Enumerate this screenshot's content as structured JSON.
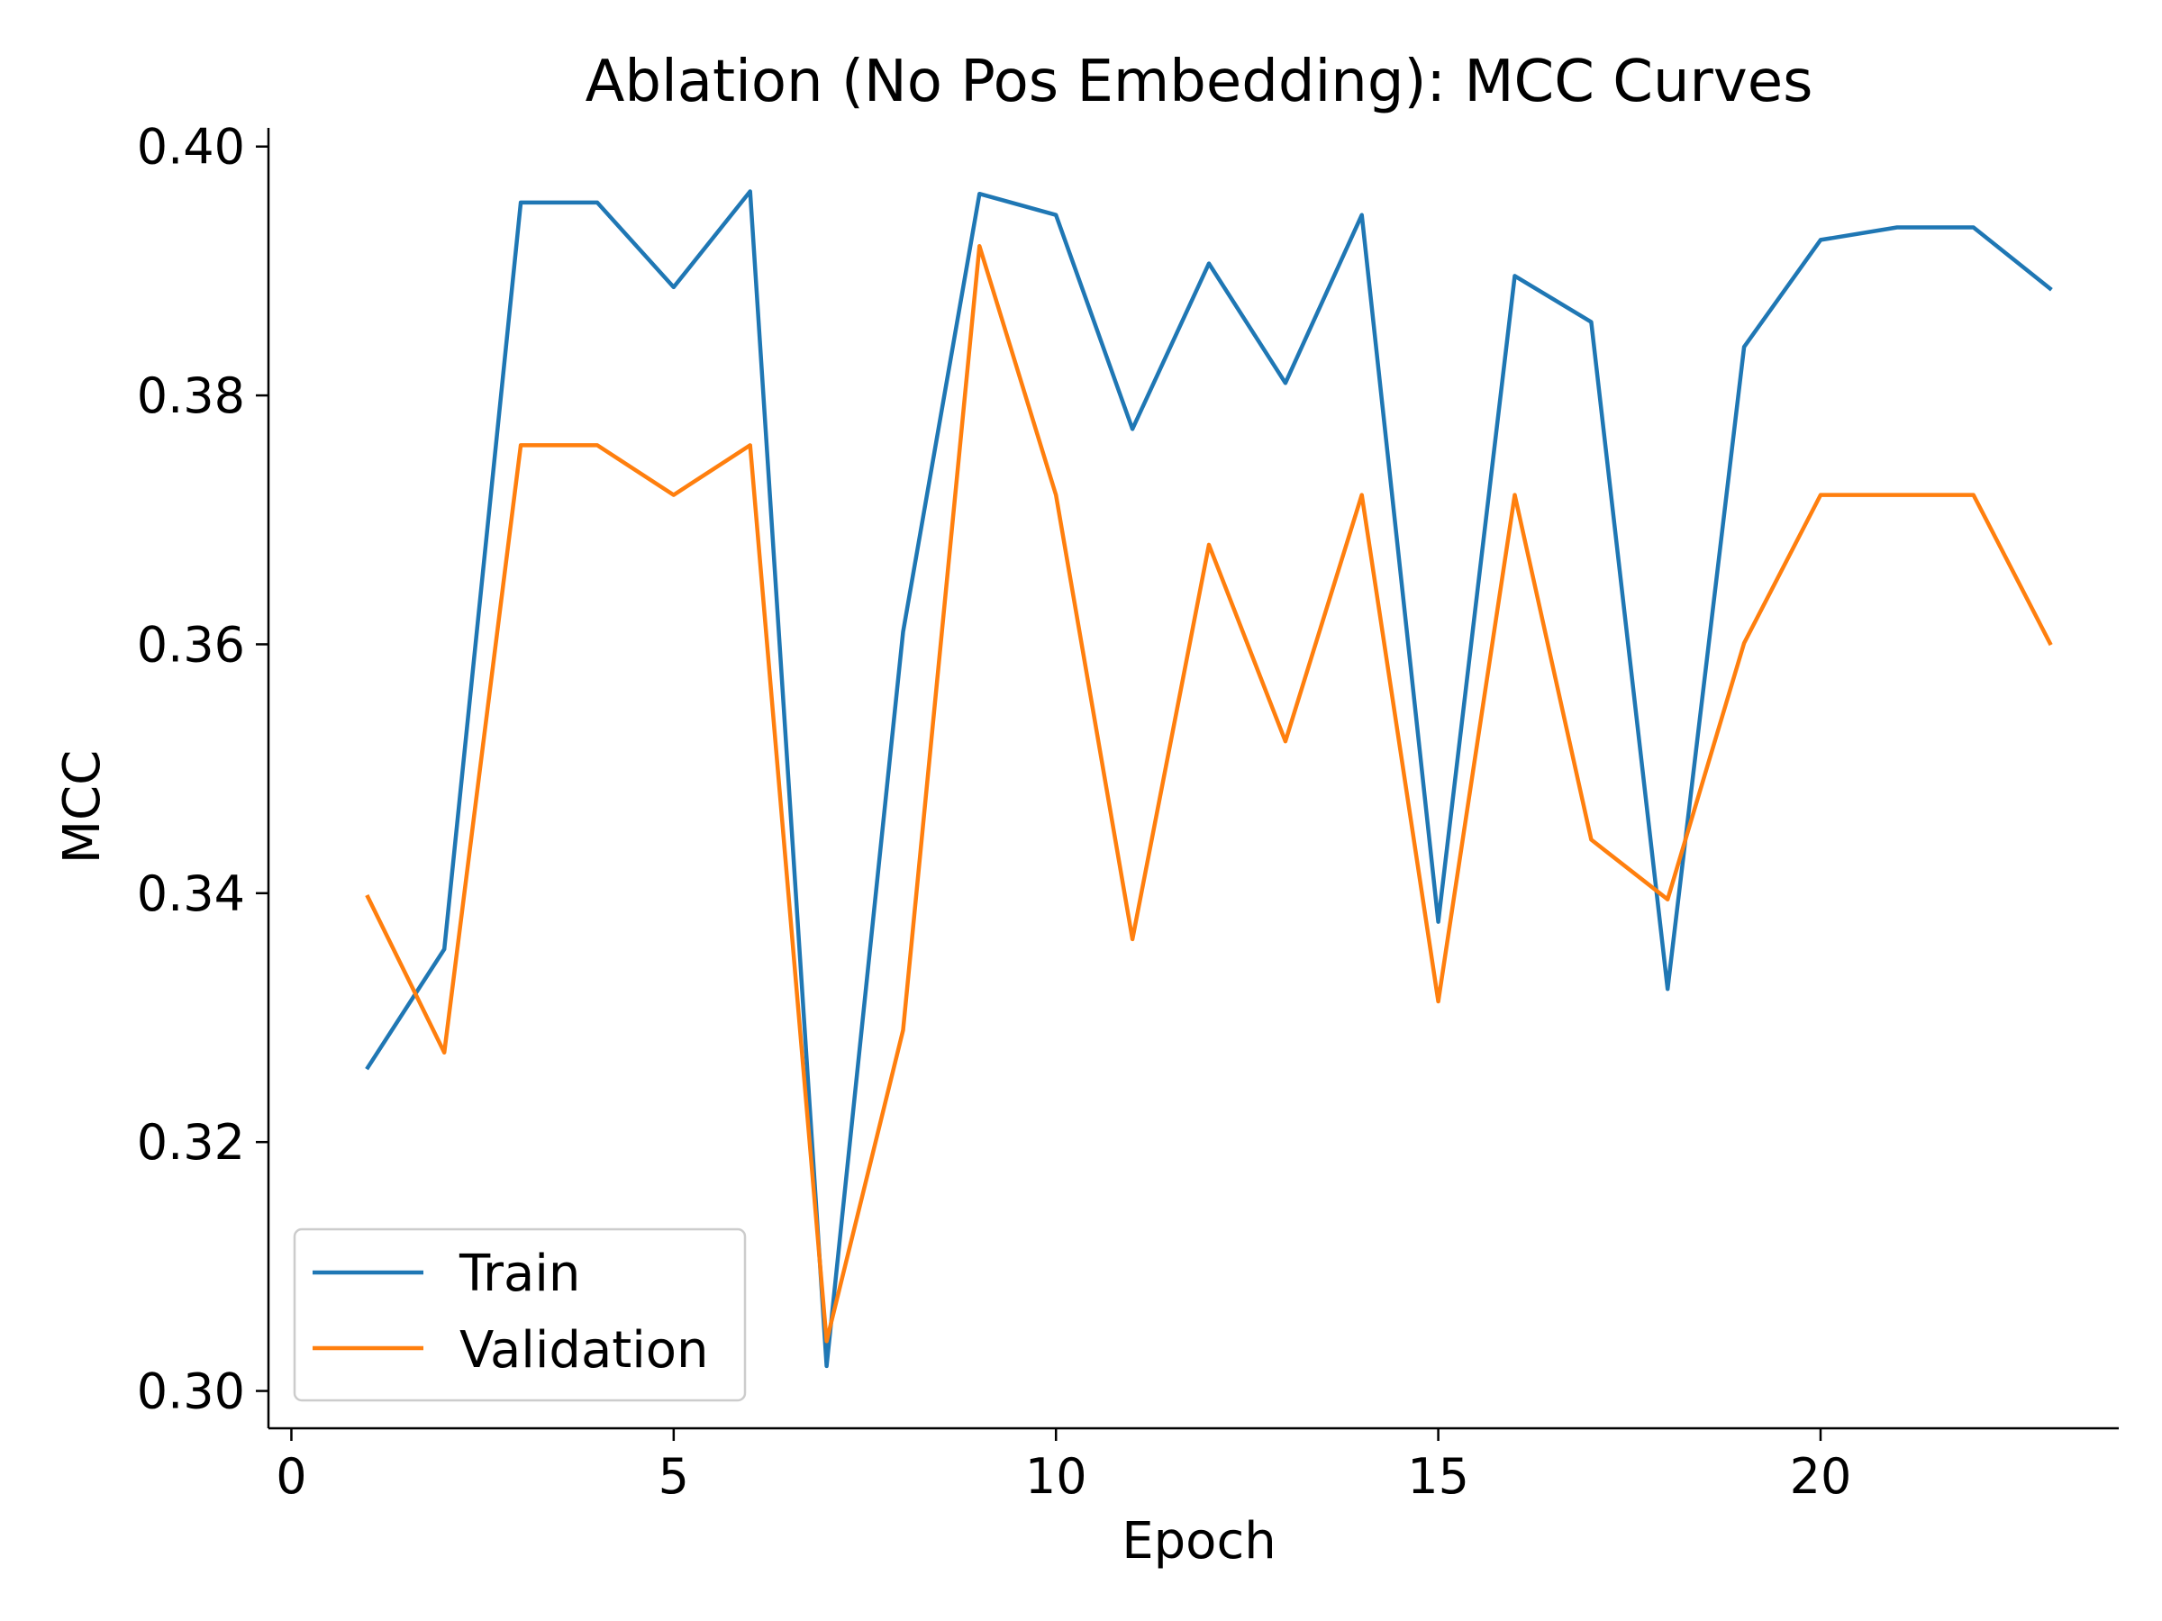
{
  "chart_data": {
    "type": "line",
    "title": "Ablation (No Pos Embedding): MCC Curves",
    "xlabel": "Epoch",
    "ylabel": "MCC",
    "xlim": [
      -0.3,
      23.9
    ],
    "ylim": [
      0.297,
      0.4015
    ],
    "xticks": [
      0,
      5,
      10,
      15,
      20
    ],
    "xtick_labels": [
      "0",
      "5",
      "10",
      "15",
      "20"
    ],
    "yticks": [
      0.3,
      0.32,
      0.34,
      0.36,
      0.38,
      0.4
    ],
    "ytick_labels": [
      "0.30",
      "0.32",
      "0.34",
      "0.36",
      "0.38",
      "0.40"
    ],
    "grid": false,
    "legend_position": "lower-left",
    "x": [
      1,
      2,
      3,
      4,
      5,
      6,
      7,
      8,
      9,
      10,
      11,
      12,
      13,
      14,
      15,
      16,
      17,
      18,
      19,
      20,
      21,
      22,
      23
    ],
    "series": [
      {
        "name": "Train",
        "color": "#1f77b4",
        "values": [
          0.326,
          0.3355,
          0.3955,
          0.3955,
          0.3887,
          0.3964,
          0.302,
          0.361,
          0.3962,
          0.3945,
          0.3773,
          0.3906,
          0.381,
          0.3945,
          0.3377,
          0.3896,
          0.3859,
          0.3323,
          0.3839,
          0.3925,
          0.3935,
          0.3935,
          0.3886
        ]
      },
      {
        "name": "Validation",
        "color": "#ff7f0e",
        "values": [
          0.3397,
          0.3272,
          0.376,
          0.376,
          0.372,
          0.376,
          0.304,
          0.329,
          0.392,
          0.372,
          0.3363,
          0.368,
          0.3522,
          0.372,
          0.3313,
          0.372,
          0.3443,
          0.3395,
          0.3601,
          0.372,
          0.372,
          0.372,
          0.3601
        ]
      }
    ]
  }
}
